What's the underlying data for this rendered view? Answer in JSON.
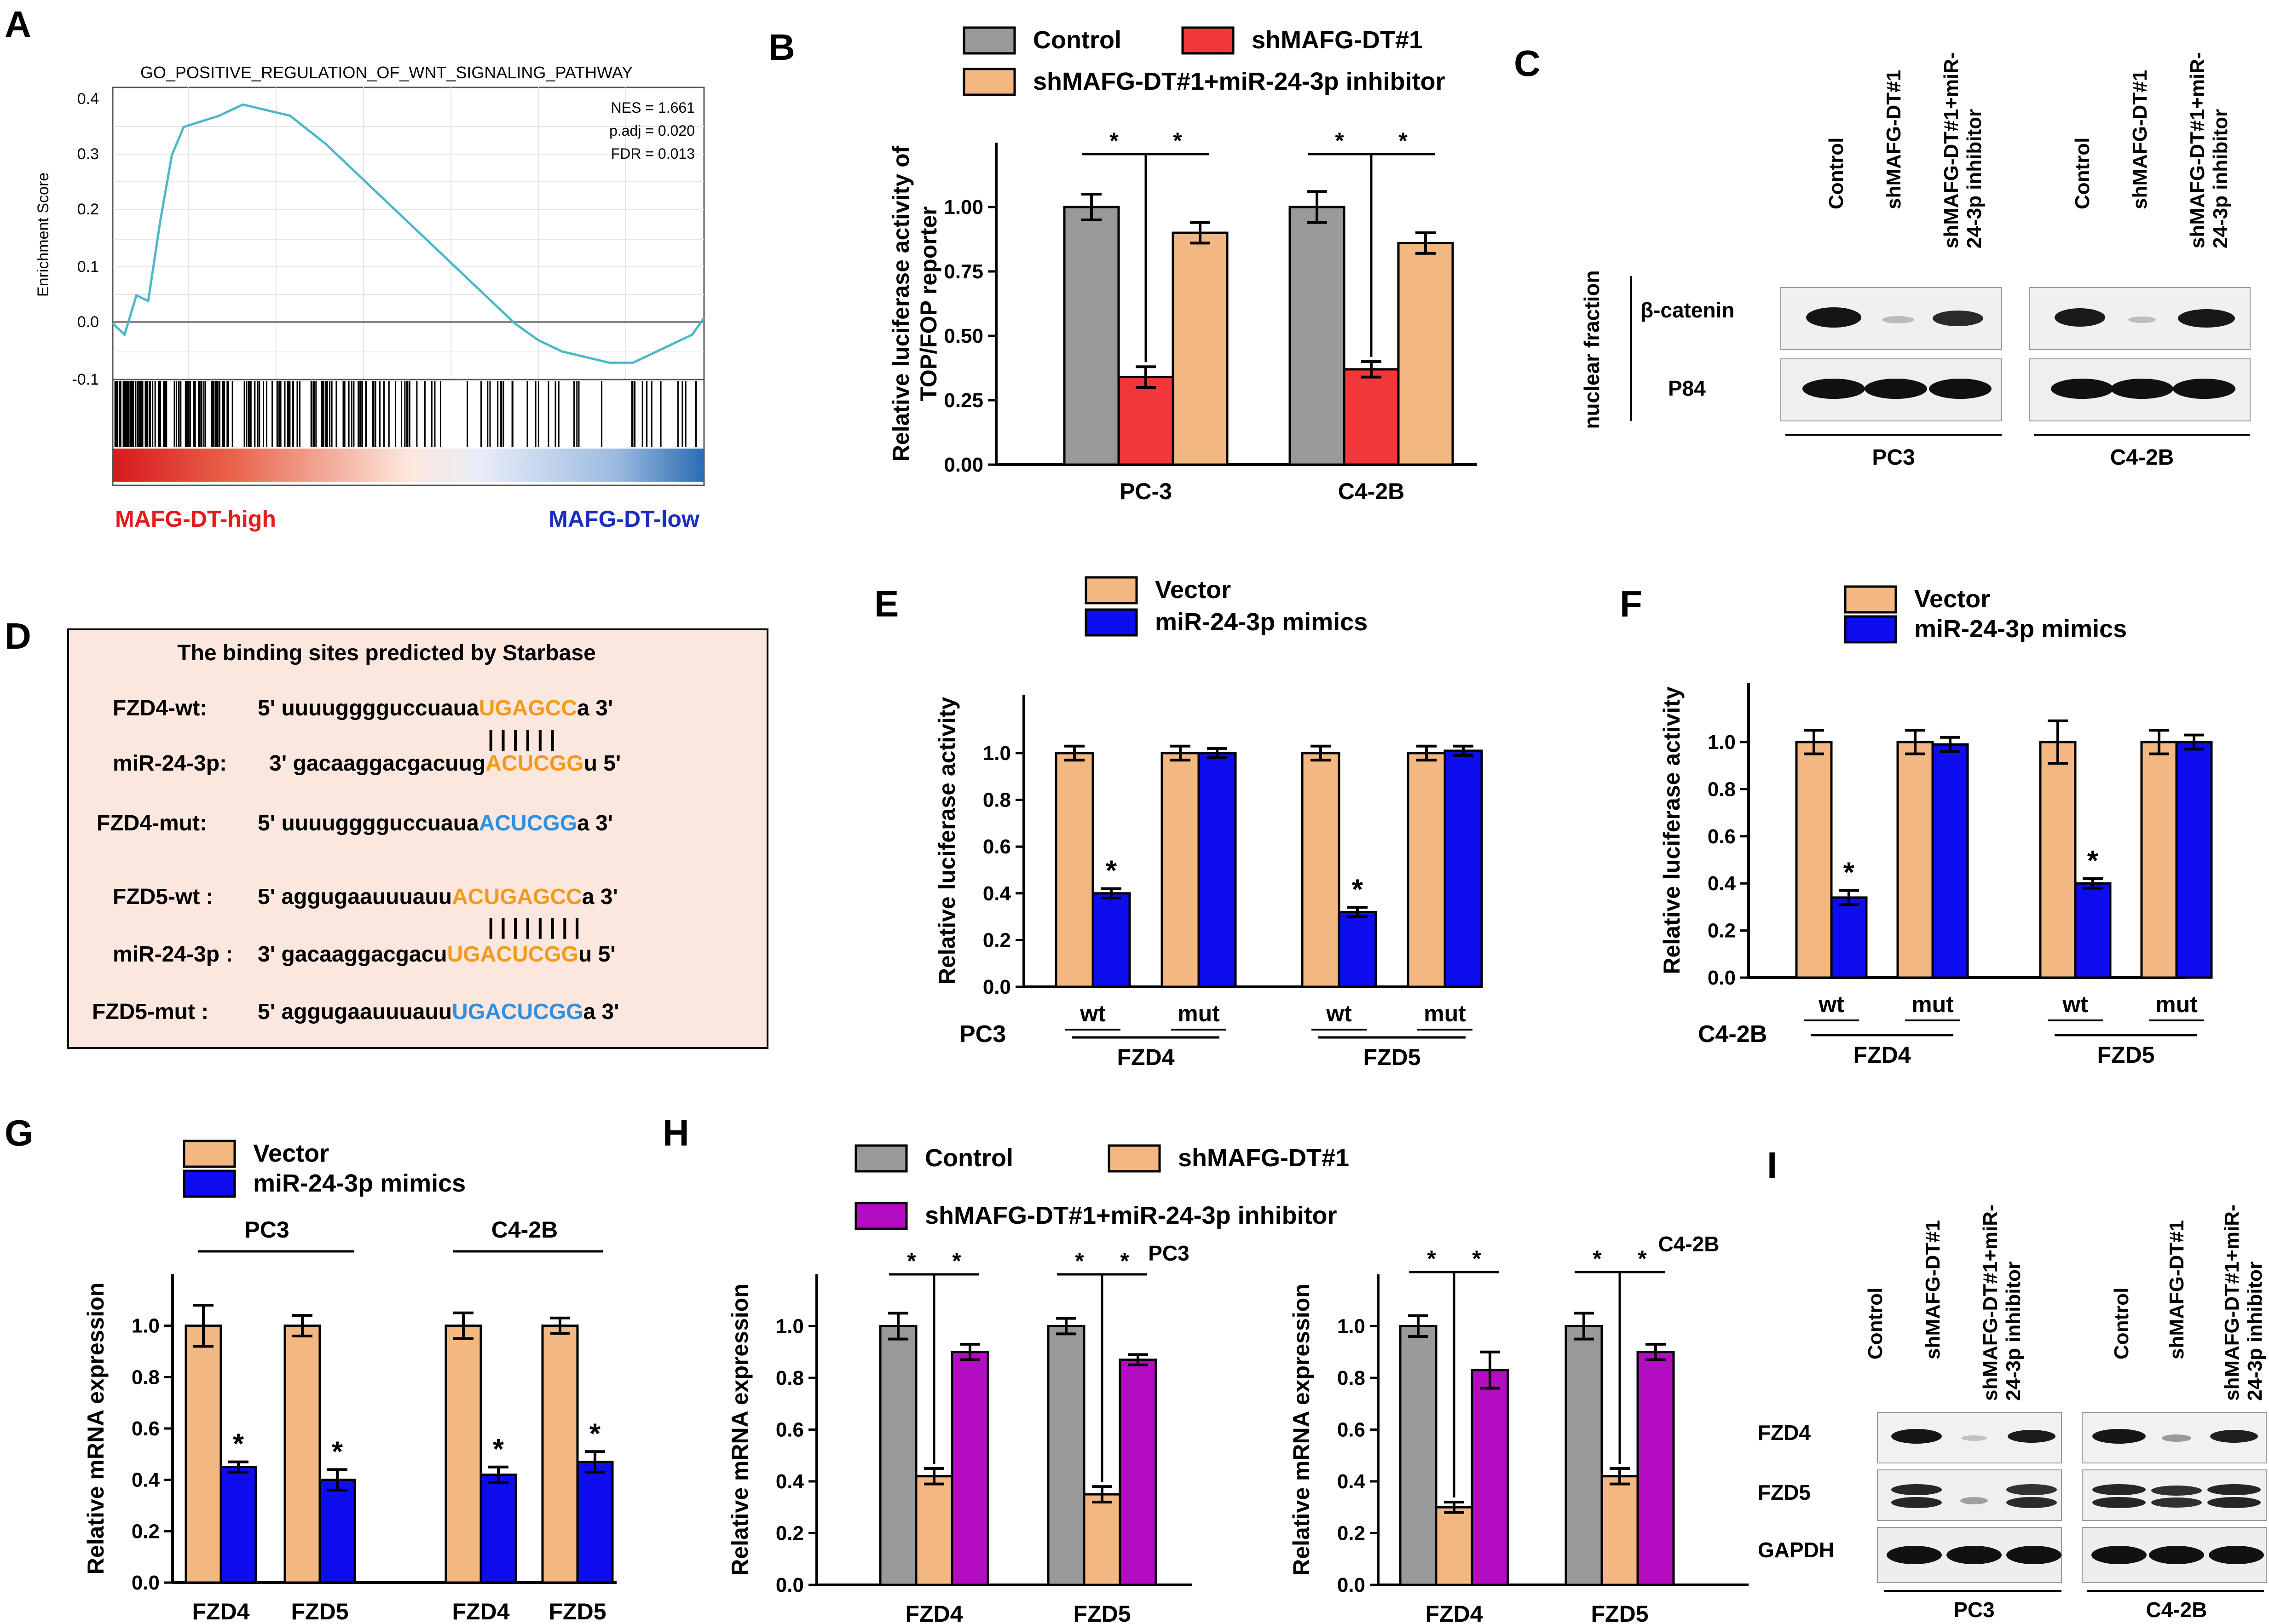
{
  "figure": {
    "panel_labels": [
      "A",
      "B",
      "C",
      "D",
      "E",
      "F",
      "G",
      "H",
      "I"
    ]
  },
  "panelA": {
    "title": "GO_POSITIVE_REGULATION_OF_WNT_SIGNALING_PATHWAY",
    "ylabel": "Enrichment Score",
    "yticks": [
      "0.4",
      "0.3",
      "0.2",
      "0.1",
      "0.0",
      "-0.1"
    ],
    "stats": [
      "NES = 1.661",
      "p.adj = 0.020",
      "FDR = 0.013"
    ],
    "high_label": "MAFG-DT-high",
    "low_label": "MAFG-DT-low",
    "colors": {
      "curve": "#4bb8c8",
      "high": "#e41a1c",
      "low": "#1a2fbf"
    }
  },
  "panelC": {
    "lanes": [
      "Control",
      "shMAFG-DT#1",
      "shMAFG-DT#1+miR-24-3p inhibitor"
    ],
    "fraction_label": "nuclear fraction",
    "proteins": [
      "β-catenin",
      "P84"
    ],
    "groups": [
      "PC3",
      "C4-2B"
    ]
  },
  "panelD": {
    "title": "The binding sites predicted by Starbase",
    "rows": [
      {
        "label": "FZD4-wt:",
        "pre": "5' uuuugggguccuaua",
        "site": "UGAGCC",
        "post": "a 3'",
        "color": "#f29a1c"
      },
      {
        "label": "miR-24-3p:",
        "pre": "3' gacaaggacgacuug",
        "site": "ACUCGG",
        "post": "u 5'",
        "color": "#f29a1c"
      },
      {
        "label": "FZD4-mut:",
        "pre": "5' uuuugggguccuaua",
        "site": "ACUCGG",
        "post": "a 3'",
        "color": "#2f8fe0"
      },
      {
        "label": "FZD5-wt :",
        "pre": "5' aggugaauuuauu",
        "site": "ACUGAGCC",
        "post": "a 3'",
        "color": "#f29a1c"
      },
      {
        "label": "miR-24-3p :",
        "pre": "3' gacaaggacgacu",
        "site": "UGACUCGG",
        "post": "u 5'",
        "color": "#f29a1c"
      },
      {
        "label": "FZD5-mut :",
        "pre": "5' aggugaauuuauu",
        "site": "UGACUCGG",
        "post": "a 3'",
        "color": "#2f8fe0"
      }
    ],
    "pairs": [
      "| | | | | |",
      "| | | | | | | |"
    ]
  },
  "panelI": {
    "lanes": [
      "Control",
      "shMAFG-DT#1",
      "shMAFG-DT#1+miR-24-3p inhibitor"
    ],
    "proteins": [
      "FZD4",
      "FZD5",
      "GAPDH"
    ],
    "groups": [
      "PC3",
      "C4-2B"
    ]
  },
  "chart_data": [
    {
      "id": "A",
      "type": "line",
      "title": "GO_POSITIVE_REGULATION_OF_WNT_SIGNALING_PATHWAY",
      "xlabel": "",
      "ylabel": "Enrichment Score",
      "ylim": [
        -0.1,
        0.4
      ],
      "x": [
        0,
        0.02,
        0.04,
        0.06,
        0.08,
        0.1,
        0.12,
        0.15,
        0.18,
        0.22,
        0.26,
        0.3,
        0.36,
        0.42,
        0.5,
        0.58,
        0.64,
        0.68,
        0.72,
        0.76,
        0.8,
        0.84,
        0.88,
        0.92,
        0.94,
        0.96,
        0.98,
        1.0
      ],
      "y": [
        0.0,
        -0.02,
        0.05,
        0.04,
        0.18,
        0.3,
        0.35,
        0.36,
        0.37,
        0.39,
        0.38,
        0.37,
        0.32,
        0.26,
        0.18,
        0.1,
        0.04,
        0.0,
        -0.03,
        -0.05,
        -0.06,
        -0.07,
        -0.07,
        -0.05,
        -0.04,
        -0.03,
        -0.02,
        0.01
      ]
    },
    {
      "id": "B",
      "type": "bar",
      "title": "",
      "xlabel": "",
      "ylabel": "Relative luciferase activity of TOP/FOP reporter",
      "ylim": [
        0,
        1.25
      ],
      "yticks": [
        "0.00",
        "0.25",
        "0.50",
        "0.75",
        "1.00"
      ],
      "ytick_values": [
        0,
        0.25,
        0.5,
        0.75,
        1.0
      ],
      "categories": [
        "PC-3",
        "C4-2B"
      ],
      "series": [
        {
          "name": "Control",
          "color": "#999999",
          "values": [
            1.0,
            1.0
          ],
          "errors": [
            0.05,
            0.06
          ]
        },
        {
          "name": "shMAFG-DT#1",
          "color": "#f0383b",
          "values": [
            0.34,
            0.37
          ],
          "errors": [
            0.04,
            0.03
          ]
        },
        {
          "name": "shMAFG-DT#1+miR-24-3p inhibitor",
          "color": "#f3b881",
          "values": [
            0.9,
            0.86
          ],
          "errors": [
            0.04,
            0.04
          ]
        }
      ],
      "significance": [
        [
          "*",
          "*"
        ],
        [
          "*",
          "*"
        ]
      ]
    },
    {
      "id": "E",
      "type": "bar",
      "title": "",
      "xlabel": "PC3",
      "ylabel": "Relative luciferase activity",
      "ylim": [
        0,
        1.25
      ],
      "yticks": [
        "0.0",
        "0.2",
        "0.4",
        "0.6",
        "0.8",
        "1.0"
      ],
      "ytick_values": [
        0,
        0.2,
        0.4,
        0.6,
        0.8,
        1.0
      ],
      "categories": [
        "wt",
        "mut",
        "wt",
        "mut"
      ],
      "groups": [
        "FZD4",
        "FZD5"
      ],
      "series": [
        {
          "name": "Vector",
          "color": "#f3b881",
          "values": [
            1.0,
            1.0,
            1.0,
            1.0
          ],
          "errors": [
            0.03,
            0.03,
            0.03,
            0.03
          ]
        },
        {
          "name": "miR-24-3p mimics",
          "color": "#0d0df0",
          "values": [
            0.4,
            1.0,
            0.32,
            1.01
          ],
          "errors": [
            0.02,
            0.02,
            0.02,
            0.02
          ]
        }
      ],
      "stars": [
        "*",
        "",
        "*",
        ""
      ]
    },
    {
      "id": "F",
      "type": "bar",
      "title": "",
      "xlabel": "C4-2B",
      "ylabel": "Relative luciferase activity",
      "ylim": [
        0,
        1.25
      ],
      "yticks": [
        "0.0",
        "0.2",
        "0.4",
        "0.6",
        "0.8",
        "1.0"
      ],
      "ytick_values": [
        0,
        0.2,
        0.4,
        0.6,
        0.8,
        1.0
      ],
      "categories": [
        "wt",
        "mut",
        "wt",
        "mut"
      ],
      "groups": [
        "FZD4",
        "FZD5"
      ],
      "series": [
        {
          "name": "Vector",
          "color": "#f3b881",
          "values": [
            1.0,
            1.0,
            1.0,
            1.0
          ],
          "errors": [
            0.05,
            0.05,
            0.09,
            0.05
          ]
        },
        {
          "name": "miR-24-3p mimics",
          "color": "#0d0df0",
          "values": [
            0.34,
            0.99,
            0.4,
            1.0
          ],
          "errors": [
            0.03,
            0.03,
            0.02,
            0.03
          ]
        }
      ],
      "stars": [
        "*",
        "",
        "*",
        ""
      ]
    },
    {
      "id": "G",
      "type": "bar",
      "title": "",
      "xlabel": "",
      "ylabel": "Relative mRNA expression",
      "ylim": [
        0,
        1.2
      ],
      "yticks": [
        "0.0",
        "0.2",
        "0.4",
        "0.6",
        "0.8",
        "1.0"
      ],
      "ytick_values": [
        0,
        0.2,
        0.4,
        0.6,
        0.8,
        1.0
      ],
      "categories": [
        "FZD4",
        "FZD5",
        "FZD4",
        "FZD5"
      ],
      "groups": [
        "PC3",
        "C4-2B"
      ],
      "series": [
        {
          "name": "Vector",
          "color": "#f3b881",
          "values": [
            1.0,
            1.0,
            1.0,
            1.0
          ],
          "errors": [
            0.08,
            0.04,
            0.05,
            0.03
          ]
        },
        {
          "name": "miR-24-3p mimics",
          "color": "#0d0df0",
          "values": [
            0.45,
            0.4,
            0.42,
            0.47
          ],
          "errors": [
            0.02,
            0.04,
            0.03,
            0.04
          ]
        }
      ],
      "stars": [
        "*",
        "*",
        "*",
        "*"
      ]
    },
    {
      "id": "H-PC3",
      "type": "bar",
      "title": "PC3",
      "xlabel": "",
      "ylabel": "Relative mRNA expression",
      "ylim": [
        0,
        1.2
      ],
      "yticks": [
        "0.0",
        "0.2",
        "0.4",
        "0.6",
        "0.8",
        "1.0"
      ],
      "ytick_values": [
        0,
        0.2,
        0.4,
        0.6,
        0.8,
        1.0
      ],
      "categories": [
        "FZD4",
        "FZD5"
      ],
      "series": [
        {
          "name": "Control",
          "color": "#999999",
          "values": [
            1.0,
            1.0
          ],
          "errors": [
            0.05,
            0.03
          ]
        },
        {
          "name": "shMAFG-DT#1",
          "color": "#f3b881",
          "values": [
            0.42,
            0.35
          ],
          "errors": [
            0.03,
            0.03
          ]
        },
        {
          "name": "shMAFG-DT#1+miR-24-3p inhibitor",
          "color": "#b40cc0",
          "values": [
            0.9,
            0.87
          ],
          "errors": [
            0.03,
            0.02
          ]
        }
      ],
      "significance": [
        [
          "*",
          "*"
        ],
        [
          "*",
          "*"
        ]
      ]
    },
    {
      "id": "H-C4-2B",
      "type": "bar",
      "title": "C4-2B",
      "xlabel": "",
      "ylabel": "Relative mRNA expression",
      "ylim": [
        0,
        1.2
      ],
      "yticks": [
        "0.0",
        "0.2",
        "0.4",
        "0.6",
        "0.8",
        "1.0"
      ],
      "ytick_values": [
        0,
        0.2,
        0.4,
        0.6,
        0.8,
        1.0
      ],
      "categories": [
        "FZD4",
        "FZD5"
      ],
      "series": [
        {
          "name": "Control",
          "color": "#999999",
          "values": [
            1.0,
            1.0
          ],
          "errors": [
            0.04,
            0.05
          ]
        },
        {
          "name": "shMAFG-DT#1",
          "color": "#f3b881",
          "values": [
            0.3,
            0.42
          ],
          "errors": [
            0.02,
            0.03
          ]
        },
        {
          "name": "shMAFG-DT#1+miR-24-3p inhibitor",
          "color": "#b40cc0",
          "values": [
            0.83,
            0.9
          ],
          "errors": [
            0.07,
            0.03
          ]
        }
      ],
      "significance": [
        [
          "*",
          "*"
        ],
        [
          "*",
          "*"
        ]
      ]
    }
  ]
}
